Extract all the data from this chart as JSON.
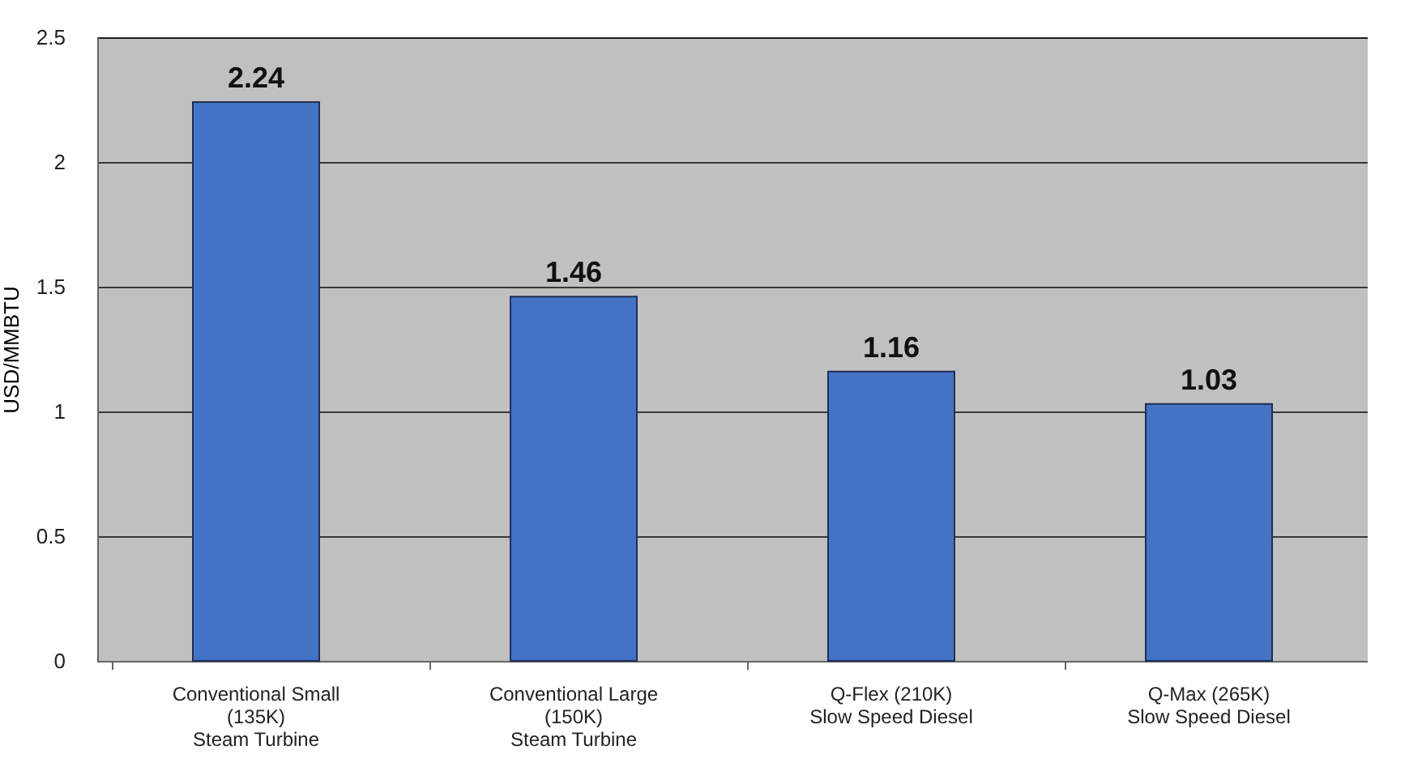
{
  "chart_data": {
    "type": "bar",
    "ylabel": "USD/MMBTU",
    "categories": [
      "Conventional Small\n(135K)\nSteam Turbine",
      "Conventional Large\n(150K)\nSteam Turbine",
      "Q-Flex (210K)\nSlow Speed Diesel",
      "Q-Max (265K)\nSlow Speed Diesel"
    ],
    "values": [
      2.24,
      1.46,
      1.16,
      1.03
    ],
    "color": "#4472c4",
    "ylim": [
      0,
      2.5
    ],
    "yticks": [
      0,
      0.5,
      1,
      1.5,
      2,
      2.5
    ],
    "grid": "y",
    "data_labels": true
  }
}
